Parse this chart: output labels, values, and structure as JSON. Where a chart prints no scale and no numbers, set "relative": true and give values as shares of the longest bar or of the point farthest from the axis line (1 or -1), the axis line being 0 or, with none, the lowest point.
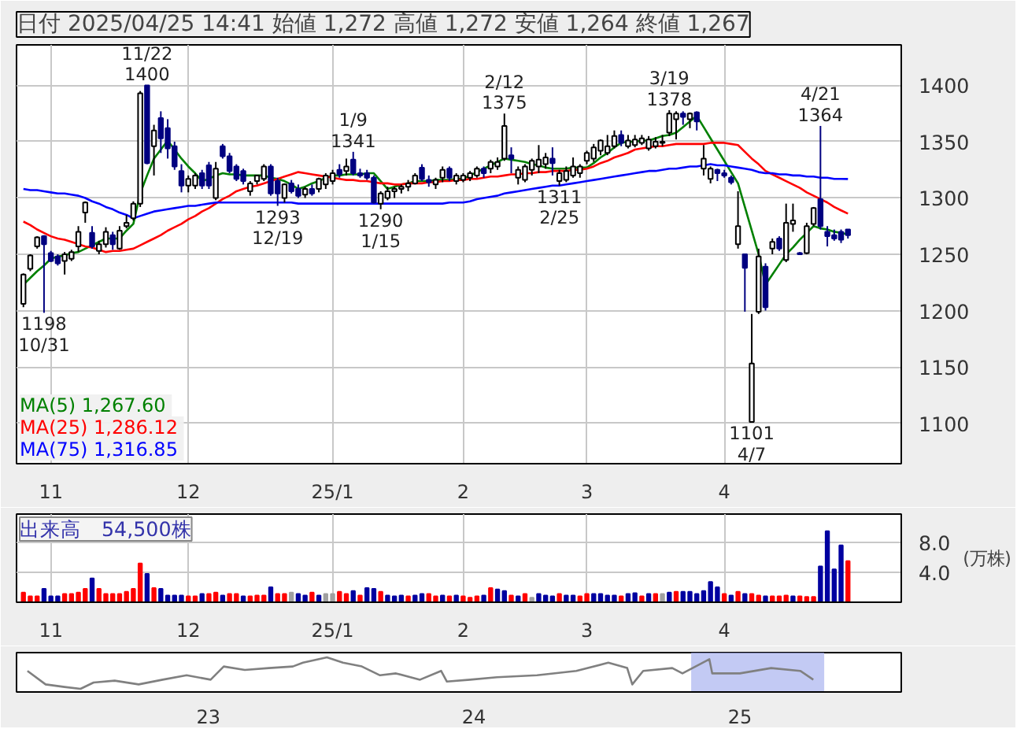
{
  "chart_data": [
    {
      "type": "candlestick",
      "title": "日付 2025/04/25 14:41 始値 1,272 高値 1,272 安値 1,264 終値 1,267",
      "categories": [
        null,
        null,
        null,
        null,
        "11",
        null,
        null,
        null,
        null,
        null,
        null,
        null,
        null,
        null,
        null,
        null,
        null,
        null,
        null,
        null,
        null,
        null,
        null,
        null,
        "12",
        null,
        null,
        null,
        null,
        null,
        null,
        null,
        null,
        null,
        null,
        null,
        null,
        null,
        null,
        null,
        null,
        null,
        null,
        null,
        null,
        "25/1",
        null,
        null,
        null,
        null,
        null,
        null,
        null,
        null,
        null,
        null,
        null,
        null,
        null,
        null,
        null,
        null,
        null,
        null,
        "2",
        null,
        null,
        null,
        null,
        null,
        null,
        null,
        null,
        null,
        null,
        null,
        null,
        null,
        null,
        null,
        null,
        null,
        "3",
        null,
        null,
        null,
        null,
        null,
        null,
        null,
        null,
        null,
        null,
        null,
        null,
        null,
        null,
        null,
        null,
        null,
        null,
        null,
        "4",
        null,
        null,
        null,
        null,
        null,
        null,
        null,
        null,
        null,
        null,
        null,
        null,
        null,
        null,
        null,
        null,
        null,
        null
      ],
      "series": [
        {
          "type": "line",
          "name": "MA(5)  1,267.60",
          "color": "#008000",
          "values": [
            1223,
            1229,
            1235,
            1240,
            1246,
            1248,
            1249,
            1251,
            1252,
            1255,
            1258,
            1261,
            1264,
            1264,
            1264,
            1271,
            1277,
            1304,
            1320,
            1335,
            1343,
            1351,
            1343,
            1335,
            1328,
            1322,
            1315,
            1317,
            1320,
            1322,
            1321,
            1321,
            1320,
            1320,
            1320,
            1320,
            1318,
            1317,
            1315,
            1312,
            1308,
            1310,
            1313,
            1315,
            1318,
            1320,
            1320,
            1321,
            1321,
            1321,
            1322,
            1322,
            1315,
            1308,
            1310,
            1312,
            1313,
            1315,
            1315,
            1315,
            1316,
            1316,
            1316,
            1317,
            1317,
            1320,
            1323,
            1326,
            1329,
            1332,
            1335,
            1334,
            1333,
            1332,
            1330,
            1329,
            1327,
            1326,
            1326,
            1326,
            1327,
            1327,
            1327,
            1331,
            1336,
            1340,
            1345,
            1349,
            1350,
            1350,
            1351,
            1351,
            1353,
            1355,
            1356,
            1358,
            1363,
            1368,
            1373,
            1363,
            1353,
            1343,
            1333,
            1323,
            1313,
            1292,
            1271,
            1250,
            1223,
            1232,
            1241,
            1250,
            1256,
            1263,
            1269,
            1275,
            1273,
            1272,
            1270,
            1269,
            1267.6
          ]
        },
        {
          "type": "line",
          "name": "MA(25)  1,286.12",
          "color": "#ff0000",
          "values": [
            1279,
            1276,
            1272,
            1269,
            1266,
            1264,
            1263,
            1261,
            1259,
            1257,
            1256,
            1254,
            1252,
            1253,
            1253,
            1254,
            1255,
            1258,
            1261,
            1264,
            1267,
            1271,
            1274,
            1277,
            1281,
            1284,
            1288,
            1291,
            1295,
            1299,
            1302,
            1306,
            1308,
            1310,
            1311,
            1313,
            1315,
            1317,
            1319,
            1321,
            1323,
            1322,
            1321,
            1320,
            1319,
            1318,
            1317,
            1316,
            1316,
            1315,
            1315,
            1314,
            1313,
            1313,
            1312,
            1312,
            1313,
            1313,
            1313,
            1314,
            1314,
            1315,
            1315,
            1316,
            1316,
            1317,
            1317,
            1318,
            1319,
            1319,
            1320,
            1321,
            1321,
            1322,
            1322,
            1323,
            1323,
            1324,
            1324,
            1324,
            1325,
            1325,
            1326,
            1328,
            1331,
            1333,
            1336,
            1338,
            1340,
            1343,
            1344,
            1345,
            1346,
            1346,
            1347,
            1348,
            1348,
            1348,
            1348,
            1348,
            1349,
            1349,
            1349,
            1348,
            1347,
            1341,
            1335,
            1330,
            1324,
            1321,
            1318,
            1315,
            1312,
            1309,
            1305,
            1302,
            1299,
            1296,
            1292,
            1289,
            1286.12
          ]
        },
        {
          "type": "line",
          "name": "MA(75)  1,316.85",
          "color": "#0000ff",
          "values": [
            1308,
            1307,
            1307,
            1306,
            1305,
            1304,
            1304,
            1303,
            1302,
            1300,
            1297,
            1295,
            1292,
            1290,
            1287,
            1285,
            1282,
            1284,
            1286,
            1288,
            1289,
            1290,
            1291,
            1292,
            1293,
            1293,
            1294,
            1295,
            1296,
            1296,
            1296,
            1296,
            1296,
            1296,
            1296,
            1296,
            1296,
            1296,
            1296,
            1296,
            1295,
            1295,
            1295,
            1295,
            1295,
            1295,
            1295,
            1295,
            1295,
            1295,
            1295,
            1295,
            1295,
            1295,
            1295,
            1295,
            1295,
            1295,
            1295,
            1295,
            1295,
            1295,
            1296,
            1296,
            1296,
            1297,
            1299,
            1300,
            1301,
            1302,
            1304,
            1305,
            1306,
            1307,
            1308,
            1309,
            1310,
            1311,
            1311,
            1312,
            1313,
            1314,
            1315,
            1316,
            1317,
            1318,
            1319,
            1320,
            1321,
            1322,
            1323,
            1324,
            1324,
            1325,
            1326,
            1326,
            1327,
            1328,
            1328,
            1329,
            1330,
            1329,
            1329,
            1328,
            1327,
            1326,
            1325,
            1323,
            1322,
            1322,
            1321,
            1321,
            1320,
            1320,
            1319,
            1319,
            1318,
            1318,
            1317,
            1317,
            1316.85
          ]
        },
        {
          "type": "candlestick",
          "colors": [
            "#ffffff",
            "#ffffff",
            "#ffffff",
            "#000080",
            "#000080",
            "#000080",
            "#ffffff",
            "#ffffff",
            "#ffffff",
            "#ffffff",
            "#000080",
            "#ffffff",
            "#ffffff",
            "#000080",
            "#ffffff",
            "#ffffff",
            "#ffffff",
            "#ffffff",
            "#000080",
            "#ffffff",
            "#000080",
            "#000080",
            "#000080",
            "#000080",
            "#ffffff",
            "#ffffff",
            "#000080",
            "#000080",
            "#ffffff",
            "#000080",
            "#000080",
            "#000080",
            "#000080",
            "#ffffff",
            "#ffffff",
            "#ffffff",
            "#000080",
            "#000080",
            "#ffffff",
            "#000080",
            "#000080",
            "#ffffff",
            "#000080",
            "#ffffff",
            "#ffffff",
            "#ffffff",
            "#000080",
            "#ffffff",
            "#000080",
            "#000080",
            "#000080",
            "#000080",
            "#ffffff",
            "#ffffff",
            "#ffffff",
            "#ffffff",
            "#ffffff",
            "#ffffff",
            "#000080",
            "#000080",
            "#ffffff",
            "#ffffff",
            "#000080",
            "#ffffff",
            "#ffffff",
            "#ffffff",
            "#ffffff",
            "#000080",
            "#ffffff",
            "#ffffff",
            "#ffffff",
            "#000080",
            "#ffffff",
            "#ffffff",
            "#ffffff",
            "#ffffff",
            "#ffffff",
            "#000080",
            "#ffffff",
            "#ffffff",
            "#ffffff",
            "#ffffff",
            "#ffffff",
            "#ffffff",
            "#ffffff",
            "#ffffff",
            "#ffffff",
            "#000080",
            "#ffffff",
            "#ffffff",
            "#ffffff",
            "#ffffff",
            "#ffffff",
            "#ffffff",
            "#ffffff",
            "#ffffff",
            "#000080",
            "#ffffff",
            "#000080",
            "#ffffff",
            "#ffffff",
            "#000080",
            "#000080",
            "#000080",
            "#ffffff",
            "#000080",
            "#ffffff",
            "#ffffff",
            "#000080",
            "#ffffff",
            "#000080",
            "#ffffff",
            "#ffffff",
            "#000080",
            "#ffffff",
            "#ffffff",
            "#000080",
            "#000080",
            "#000080",
            "#000080",
            "#000080"
          ],
          "ohlc": [
            [
              1206,
              1233,
              1203,
              1232
            ],
            [
              1237,
              1250,
              1235,
              1249
            ],
            [
              1257,
              1266,
              1255,
              1265
            ],
            [
              1266,
              1267,
              1198,
              1259
            ],
            [
              1251,
              1253,
              1243,
              1244
            ],
            [
              1248,
              1250,
              1240,
              1242
            ],
            [
              1244,
              1252,
              1232,
              1250
            ],
            [
              1246,
              1254,
              1244,
              1252
            ],
            [
              1257,
              1275,
              1252,
              1270
            ],
            [
              1287,
              1297,
              1278,
              1296
            ],
            [
              1269,
              1275,
              1255,
              1257
            ],
            [
              1253,
              1262,
              1250,
              1259
            ],
            [
              1259,
              1274,
              1256,
              1270
            ],
            [
              1267,
              1270,
              1254,
              1259
            ],
            [
              1255,
              1275,
              1254,
              1271
            ],
            [
              1275,
              1285,
              1273,
              1278
            ],
            [
              1282,
              1297,
              1280,
              1295
            ],
            [
              1295,
              1395,
              1292,
              1393
            ],
            [
              1400,
              1400,
              1330,
              1331
            ],
            [
              1346,
              1365,
              1320,
              1360
            ],
            [
              1371,
              1377,
              1340,
              1353
            ],
            [
              1362,
              1370,
              1335,
              1344
            ],
            [
              1346,
              1350,
              1325,
              1328
            ],
            [
              1324,
              1330,
              1305,
              1311
            ],
            [
              1311,
              1320,
              1305,
              1317
            ],
            [
              1311,
              1322,
              1308,
              1320
            ],
            [
              1322,
              1325,
              1308,
              1311
            ],
            [
              1329,
              1332,
              1308,
              1311
            ],
            [
              1300,
              1332,
              1298,
              1326
            ],
            [
              1346,
              1348,
              1335,
              1337
            ],
            [
              1337,
              1340,
              1322,
              1324
            ],
            [
              1328,
              1330,
              1315,
              1317
            ],
            [
              1324,
              1326,
              1312,
              1315
            ],
            [
              1306,
              1315,
              1302,
              1313
            ],
            [
              1315,
              1320,
              1312,
              1320
            ],
            [
              1317,
              1330,
              1315,
              1328
            ],
            [
              1328,
              1330,
              1302,
              1304
            ],
            [
              1315,
              1318,
              1293,
              1304
            ],
            [
              1300,
              1313,
              1296,
              1312
            ],
            [
              1313,
              1316,
              1304,
              1306
            ],
            [
              1308,
              1312,
              1300,
              1302
            ],
            [
              1303,
              1310,
              1300,
              1308
            ],
            [
              1308,
              1312,
              1302,
              1304
            ],
            [
              1308,
              1318,
              1305,
              1317
            ],
            [
              1312,
              1322,
              1308,
              1320
            ],
            [
              1315,
              1325,
              1312,
              1322
            ],
            [
              1325,
              1330,
              1318,
              1321
            ],
            [
              1324,
              1335,
              1320,
              1328
            ],
            [
              1334,
              1341,
              1320,
              1322
            ],
            [
              1322,
              1326,
              1318,
              1320
            ],
            [
              1322,
              1325,
              1316,
              1318
            ],
            [
              1318,
              1320,
              1295,
              1296
            ],
            [
              1295,
              1306,
              1290,
              1304
            ],
            [
              1300,
              1310,
              1298,
              1306
            ],
            [
              1306,
              1310,
              1300,
              1308
            ],
            [
              1308,
              1312,
              1304,
              1310
            ],
            [
              1310,
              1316,
              1306,
              1313
            ],
            [
              1313,
              1322,
              1312,
              1320
            ],
            [
              1327,
              1330,
              1315,
              1317
            ],
            [
              1316,
              1320,
              1310,
              1314
            ],
            [
              1312,
              1318,
              1308,
              1316
            ],
            [
              1318,
              1328,
              1314,
              1325
            ],
            [
              1326,
              1328,
              1315,
              1318
            ],
            [
              1315,
              1322,
              1312,
              1320
            ],
            [
              1316,
              1322,
              1314,
              1320
            ],
            [
              1318,
              1324,
              1315,
              1322
            ],
            [
              1320,
              1328,
              1318,
              1326
            ],
            [
              1326,
              1328,
              1318,
              1322
            ],
            [
              1326,
              1334,
              1322,
              1332
            ],
            [
              1328,
              1336,
              1325,
              1332
            ],
            [
              1335,
              1375,
              1333,
              1364
            ],
            [
              1338,
              1345,
              1322,
              1335
            ],
            [
              1318,
              1328,
              1312,
              1325
            ],
            [
              1316,
              1330,
              1314,
              1328
            ],
            [
              1325,
              1335,
              1320,
              1333
            ],
            [
              1328,
              1347,
              1322,
              1334
            ],
            [
              1330,
              1340,
              1326,
              1336
            ],
            [
              1335,
              1345,
              1320,
              1331
            ],
            [
              1315,
              1325,
              1311,
              1322
            ],
            [
              1316,
              1328,
              1314,
              1324
            ],
            [
              1320,
              1336,
              1318,
              1328
            ],
            [
              1322,
              1330,
              1318,
              1328
            ],
            [
              1333,
              1342,
              1330,
              1340
            ],
            [
              1335,
              1348,
              1332,
              1345
            ],
            [
              1342,
              1352,
              1338,
              1351
            ],
            [
              1340,
              1356,
              1338,
              1346
            ],
            [
              1346,
              1360,
              1344,
              1355
            ],
            [
              1356,
              1360,
              1346,
              1349
            ],
            [
              1346,
              1356,
              1344,
              1351
            ],
            [
              1347,
              1356,
              1345,
              1352
            ],
            [
              1349,
              1356,
              1347,
              1353
            ],
            [
              1344,
              1355,
              1342,
              1352
            ],
            [
              1346,
              1354,
              1344,
              1350
            ],
            [
              1349,
              1356,
              1346,
              1350
            ],
            [
              1358,
              1378,
              1355,
              1375
            ],
            [
              1370,
              1377,
              1352,
              1375
            ],
            [
              1375,
              1377,
              1365,
              1372
            ],
            [
              1370,
              1376,
              1362,
              1375
            ],
            [
              1376,
              1377,
              1360,
              1368
            ],
            [
              1326,
              1347,
              1320,
              1335
            ],
            [
              1317,
              1328,
              1313,
              1326
            ],
            [
              1325,
              1326,
              1315,
              1322
            ],
            [
              1322,
              1325,
              1318,
              1320
            ],
            [
              1318,
              1320,
              1312,
              1314
            ],
            [
              1259,
              1306,
              1255,
              1275
            ],
            [
              1250,
              1250,
              1199,
              1238
            ],
            [
              1101,
              1197,
              1101,
              1153
            ],
            [
              1199,
              1255,
              1197,
              1248
            ],
            [
              1239,
              1242,
              1200,
              1203
            ],
            [
              1255,
              1264,
              1250,
              1261
            ],
            [
              1264,
              1266,
              1253,
              1255
            ],
            [
              1245,
              1295,
              1243,
              1278
            ],
            [
              1277,
              1295,
              1270,
              1280
            ],
            [
              1251,
              1252,
              1250,
              1250
            ],
            [
              1251,
              1278,
              1250,
              1275
            ],
            [
              1277,
              1292,
              1275,
              1291
            ],
            [
              1299,
              1364,
              1272,
              1275
            ],
            [
              1270,
              1275,
              1257,
              1266
            ],
            [
              1267,
              1272,
              1262,
              1264
            ],
            [
              1270,
              1272,
              1260,
              1263
            ],
            [
              1272,
              1272,
              1264,
              1267
            ]
          ]
        }
      ],
      "annotations": [
        {
          "text": "1198\n10/31",
          "y": 1198
        },
        {
          "text": "11/22\n1400",
          "y": 1400
        },
        {
          "text": "1293\n12/19",
          "y": 1293
        },
        {
          "text": "1/9\n1341",
          "y": 1341
        },
        {
          "text": "1290\n1/15",
          "y": 1290
        },
        {
          "text": "2/12\n1375",
          "y": 1375
        },
        {
          "text": "1311\n2/25",
          "y": 1311
        },
        {
          "text": "3/19\n1378",
          "y": 1378
        },
        {
          "text": "1101\n4/7",
          "y": 1101
        },
        {
          "text": "4/21\n1364",
          "y": 1364
        }
      ],
      "ylim": [
        1064,
        1436
      ],
      "yticks": [
        1100,
        1150,
        1200,
        1250,
        1300,
        1350,
        1400
      ],
      "grid": true,
      "legend": "bottom left"
    },
    {
      "type": "bar",
      "title": "出来高　54,500株",
      "ylabel": "(万株)",
      "categories": [
        null,
        null,
        null,
        null,
        "11",
        null,
        null,
        null,
        null,
        null,
        null,
        null,
        null,
        null,
        null,
        null,
        null,
        null,
        null,
        null,
        null,
        null,
        null,
        null,
        "12",
        null,
        null,
        null,
        null,
        null,
        null,
        null,
        null,
        null,
        null,
        null,
        null,
        null,
        null,
        null,
        null,
        null,
        null,
        null,
        null,
        "25/1",
        null,
        null,
        null,
        null,
        null,
        null,
        null,
        null,
        null,
        null,
        null,
        null,
        null,
        null,
        null,
        null,
        null,
        null,
        "2",
        null,
        null,
        null,
        null,
        null,
        null,
        null,
        null,
        null,
        null,
        null,
        null,
        null,
        null,
        null,
        null,
        null,
        "3",
        null,
        null,
        null,
        null,
        null,
        null,
        null,
        null,
        null,
        null,
        null,
        null,
        null,
        null,
        null,
        null,
        null,
        null,
        null,
        "4",
        null,
        null,
        null,
        null,
        null,
        null,
        null,
        null,
        null,
        null,
        null,
        null,
        null,
        null,
        null,
        null,
        null,
        null
      ],
      "values": [
        1.3,
        0.8,
        0.8,
        1.8,
        0.8,
        0.8,
        1.1,
        1.1,
        1.3,
        1.8,
        3.2,
        1.8,
        1.1,
        1.1,
        1.1,
        1.4,
        1.8,
        5.2,
        3.8,
        1.9,
        1.8,
        0.9,
        0.9,
        0.9,
        0.8,
        0.8,
        1.1,
        1.1,
        1.3,
        0.9,
        1.1,
        1.1,
        0.8,
        0.8,
        0.9,
        0.9,
        2.0,
        1.1,
        1.1,
        1.3,
        1.1,
        0.9,
        1.3,
        0.9,
        1.1,
        1.1,
        1.4,
        1.1,
        1.5,
        0.9,
        1.9,
        1.8,
        1.4,
        0.9,
        0.8,
        0.9,
        0.8,
        0.9,
        1.1,
        1.1,
        0.8,
        0.9,
        0.8,
        0.9,
        0.8,
        0.6,
        0.8,
        0.9,
        1.9,
        1.7,
        1.5,
        0.9,
        0.8,
        1.1,
        0.6,
        1.1,
        0.9,
        0.8,
        1.1,
        0.9,
        0.9,
        0.8,
        1.1,
        1.1,
        1.1,
        0.9,
        0.9,
        0.8,
        1.1,
        1.2,
        0.8,
        1.1,
        1.1,
        1.1,
        1.3,
        1.4,
        1.4,
        1.4,
        1.1,
        1.5,
        2.7,
        2.0,
        1.1,
        0.9,
        1.4,
        1.1,
        1.1,
        0.9,
        0.8,
        0.8,
        0.8,
        0.9,
        0.8,
        0.8,
        0.7,
        0.7,
        4.8,
        9.5,
        4.4,
        7.6,
        5.5
      ],
      "colors": [
        "#ff0000",
        "#ff0000",
        "#ff0000",
        "#0000a0",
        "#0000a0",
        "#0000a0",
        "#ff0000",
        "#ff0000",
        "#ff0000",
        "#ff0000",
        "#0000a0",
        "#ff0000",
        "#ff0000",
        "#ff0000",
        "#ff0000",
        "#ff0000",
        "#ff0000",
        "#ff0000",
        "#0000a0",
        "#ff0000",
        "#0000a0",
        "#0000a0",
        "#0000a0",
        "#0000a0",
        "#ff0000",
        "#ff0000",
        "#0000a0",
        "#ff0000",
        "#ff0000",
        "#0000a0",
        "#ff0000",
        "#ff0000",
        "#0000a0",
        "#ff0000",
        "#ff0000",
        "#ff0000",
        "#0000a0",
        "#ff0000",
        "#ff0000",
        "#a0a0a0",
        "#0000a0",
        "#0000a0",
        "#ff0000",
        "#0000a0",
        "#a0a0a0",
        "#a0a0a0",
        "#ff0000",
        "#ff0000",
        "#0000a0",
        "#ff0000",
        "#0000a0",
        "#0000a0",
        "#ff0000",
        "#0000a0",
        "#0000a0",
        "#0000a0",
        "#ff0000",
        "#0000a0",
        "#0000a0",
        "#ff0000",
        "#ff0000",
        "#0000a0",
        "#ff0000",
        "#0000a0",
        "#ff0000",
        "#ff0000",
        "#ff0000",
        "#0000a0",
        "#ff0000",
        "#0000a0",
        "#0000a0",
        "#ff0000",
        "#0000a0",
        "#ff0000",
        "#a0a0a0",
        "#0000a0",
        "#0000a0",
        "#0000a0",
        "#ff0000",
        "#0000a0",
        "#0000a0",
        "#ff0000",
        "#ff0000",
        "#0000a0",
        "#0000a0",
        "#0000a0",
        "#0000a0",
        "#ff0000",
        "#0000a0",
        "#0000a0",
        "#ff0000",
        "#0000a0",
        "#ff0000",
        "#a0a0a0",
        "#0000a0",
        "#ff0000",
        "#0000a0",
        "#0000a0",
        "#0000a0",
        "#0000a0",
        "#0000a0",
        "#0000a0",
        "#ff0000",
        "#0000a0",
        "#ff0000",
        "#0000a0",
        "#ff0000",
        "#ff0000",
        "#0000a0",
        "#ff0000",
        "#ff0000",
        "#ff0000",
        "#0000a0",
        "#ff0000",
        "#ff0000",
        "#ff0000",
        "#0000a0",
        "#0000a0",
        "#0000a0",
        "#0000a0",
        "#ff0000"
      ],
      "ylim": [
        0,
        11.8
      ],
      "yticks": [
        {
          "value": 4,
          "label": "4.0"
        },
        {
          "value": 8,
          "label": "8.0"
        }
      ],
      "grid": true
    },
    {
      "type": "line",
      "relative": true,
      "series": [
        {
          "color": "#808080",
          "x": [
            "2022-04-27",
            "2022-05-22",
            "2022-06-17",
            "2022-07-09",
            "2022-07-27",
            "2022-08-25",
            "2022-09-27",
            "2022-10-30",
            "2022-12-02",
            "2023-01-04",
            "2023-01-22",
            "2023-02-20",
            "2023-03-25",
            "2023-04-27",
            "2023-05-11",
            "2023-06-13",
            "2023-07-05",
            "2023-07-31",
            "2023-08-25",
            "2023-09-16",
            "2023-10-19",
            "2023-11-17",
            "2023-11-25",
            "2023-12-27",
            "2024-02-02",
            "2024-03-28",
            "2024-05-21",
            "2024-07-04",
            "2024-07-30",
            "2024-08-06",
            "2024-08-21",
            "2024-09-30",
            "2024-10-14",
            "2024-11-20",
            "2024-11-24",
            "2025-01-01",
            "2025-02-13",
            "2025-03-25",
            "2025-04-12"
          ],
          "values": [
            0.57,
            0.14,
            0.06,
            0,
            0.2,
            0.26,
            0.14,
            0.29,
            0.43,
            0.29,
            0.71,
            0.6,
            0.66,
            0.71,
            0.83,
            1,
            0.83,
            0.71,
            0.43,
            0.49,
            0.29,
            0.57,
            0.23,
            0.29,
            0.37,
            0.43,
            0.57,
            0.83,
            0.66,
            0.14,
            0.57,
            0.66,
            0.49,
            0.94,
            0.49,
            0.49,
            0.66,
            0.57,
            0.29
          ]
        }
      ],
      "xlim": [
        "2022-04-12",
        "2025-08-11"
      ],
      "xticks": [
        {
          "value": "2023-01-01",
          "label": "23"
        },
        {
          "value": "2024-01-01",
          "label": "24"
        },
        {
          "value": "2025-01-01",
          "label": "25"
        }
      ],
      "bands": [
        {
          "axis": "x",
          "from": "2024-10-26",
          "to": "2025-04-27",
          "color": "#aab4f0"
        }
      ]
    }
  ]
}
